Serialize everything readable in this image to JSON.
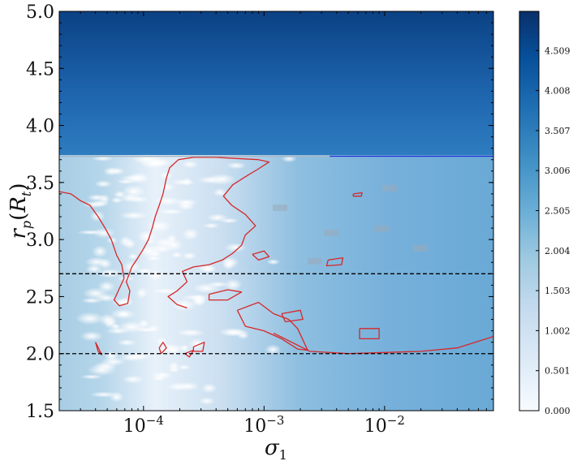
{
  "chart_data": {
    "type": "heatmap",
    "x_scale": "log",
    "xlim": [
      2e-05,
      0.08
    ],
    "ylim": [
      1.5,
      5.0
    ],
    "x_ticks": [
      {
        "value": 0.0001,
        "base": "10",
        "exp": "−4"
      },
      {
        "value": 0.001,
        "base": "10",
        "exp": "−3"
      },
      {
        "value": 0.01,
        "base": "10",
        "exp": "−2"
      }
    ],
    "y_ticks": [
      {
        "value": 1.5,
        "label": "1.5"
      },
      {
        "value": 2.0,
        "label": "2.0"
      },
      {
        "value": 2.5,
        "label": "2.5"
      },
      {
        "value": 3.0,
        "label": "3.0"
      },
      {
        "value": 3.5,
        "label": "3.5"
      },
      {
        "value": 4.0,
        "label": "4.0"
      },
      {
        "value": 4.5,
        "label": "4.5"
      },
      {
        "value": 5.0,
        "label": "5.0"
      }
    ],
    "xlabel": {
      "symbol": "σ",
      "subscript": "1"
    },
    "ylabel": {
      "r": "r",
      "p": "p",
      "open": "(",
      "R": "R",
      "t": "t",
      "close": ")"
    },
    "colormap": "Blues",
    "colorbar": {
      "vmin": 0.0,
      "vmax": 5.0,
      "ticks": [
        "0.000",
        "0.501",
        "1.002",
        "1.503",
        "2.004",
        "2.505",
        "3.006",
        "3.507",
        "4.008",
        "4.509"
      ]
    },
    "reference_lines": [
      {
        "y": 2.0,
        "style": "dashed",
        "color": "#000000"
      },
      {
        "y": 2.7,
        "style": "dashed",
        "color": "#000000"
      }
    ],
    "boundary_line": {
      "y": 3.73,
      "x_from": 0.0035,
      "color": "#1f2fd6"
    },
    "contour_color": "#d62728",
    "colors": {
      "low": "#f7fbff",
      "high": "#08306b",
      "contour": "#d62728",
      "boundary": "#1f2fd6"
    }
  }
}
